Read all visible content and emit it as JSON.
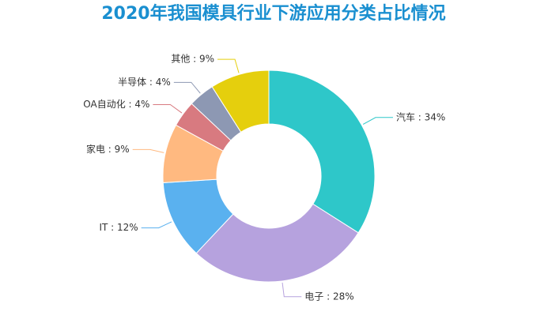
{
  "chart_data": {
    "type": "donut",
    "title": "2020年我国模具行业下游应用分类占比情况",
    "values": [
      34,
      28,
      12,
      9,
      4,
      4,
      9
    ],
    "value_labels": [
      "汽车 : 34%",
      "电子 : 28%",
      "IT : 12%",
      "家电 : 9%",
      "OA自动化 : 4%",
      "半导体 : 4%",
      "其他 : 9%"
    ],
    "colors": [
      "#2ec7c9",
      "#b6a2de",
      "#5ab1ef",
      "#ffb980",
      "#d87a80",
      "#8d98b3",
      "#e5cf0d"
    ]
  }
}
